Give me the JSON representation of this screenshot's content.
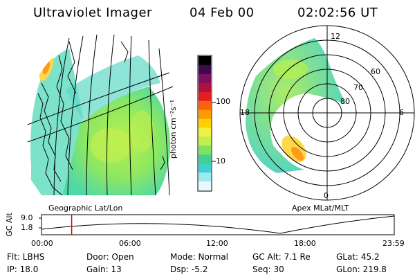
{
  "header": {
    "instrument": "Ultraviolet Imager",
    "date": "04 Feb 00",
    "time": "02:02:56 UT"
  },
  "colorbar": {
    "label": "photon cm⁻²s⁻¹",
    "ticks": [
      "100",
      "10"
    ],
    "colors": [
      "#000000",
      "#3a0a4a",
      "#7a1060",
      "#b01040",
      "#e02020",
      "#ff6010",
      "#ff9a00",
      "#ffd000",
      "#f0f040",
      "#c0f050",
      "#80e060",
      "#40d090",
      "#40d0d0",
      "#a0e8f0",
      "#e8f8ff"
    ]
  },
  "left_panel": {
    "caption": "Geographic Lat/Lon"
  },
  "right_panel": {
    "caption": "Apex MLat/MLT",
    "lat_labels": [
      "60",
      "70",
      "80"
    ],
    "mlt_labels": [
      "12",
      "18",
      "6",
      "0"
    ]
  },
  "altitude_strip": {
    "ylabel": "GC Alt",
    "yticks": [
      "9.0",
      "1.8"
    ],
    "xticks": [
      "00:00",
      "06:00",
      "12:00",
      "18:00",
      "23:59"
    ],
    "marker_time_hours": 2.05
  },
  "info": {
    "row1": {
      "flt": "Flt: LBHS",
      "door": "Door: Open",
      "mode": "Mode: Normal",
      "gcalt": "GC Alt: 7.1 Re",
      "glat": "GLat:  45.2"
    },
    "row2": {
      "ip": "IP: 18.0",
      "gain": "Gain: 13",
      "dsp": "Dsp:   -5.2",
      "seq": "Seq: 30",
      "glon": "GLon: 219.8"
    }
  }
}
